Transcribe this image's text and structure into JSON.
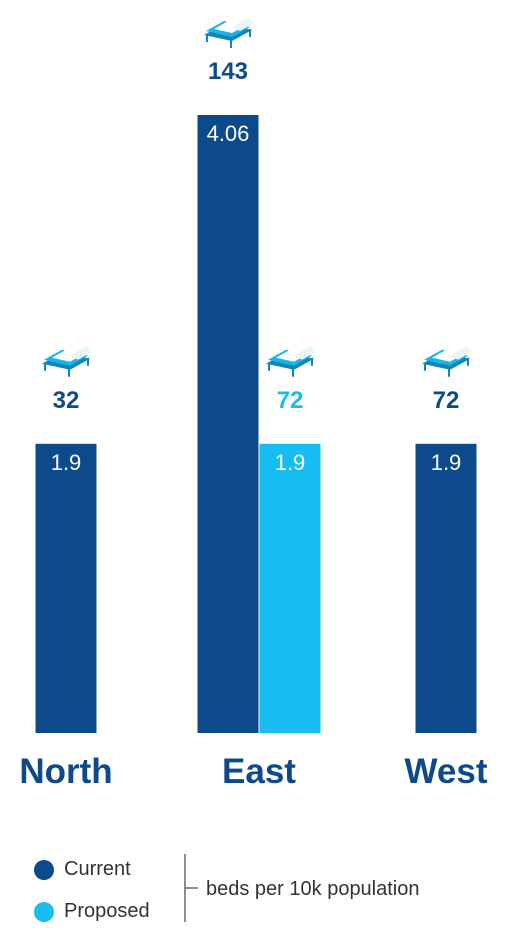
{
  "colors": {
    "current": "#0d4a8c",
    "proposed": "#17bdf0",
    "label_text": "#ffffff",
    "icon_sheet": "#ffffff"
  },
  "icon": "hospital-bed-icon",
  "chart_data": {
    "type": "bar",
    "title": "",
    "categories": [
      "North",
      "East",
      "West"
    ],
    "series": [
      {
        "name": "Current",
        "values": [
          1.9,
          4.06,
          1.9
        ],
        "labels": [
          "1.9",
          "4.06",
          "1.9"
        ],
        "beds": [
          "32",
          "143",
          "72"
        ]
      },
      {
        "name": "Proposed",
        "values": [
          null,
          1.9,
          null
        ],
        "labels": [
          "",
          "1.9",
          ""
        ],
        "beds": [
          "",
          "72",
          ""
        ]
      }
    ],
    "ylabel": "beds per 10k population",
    "ylim": [
      0,
      4.06
    ],
    "grid": false,
    "legend_position": "bottom"
  },
  "legend": {
    "items": [
      {
        "label": "Current",
        "color": "#0d4a8c"
      },
      {
        "label": "Proposed",
        "color": "#17bdf0"
      }
    ],
    "note": "beds per 10k population"
  }
}
